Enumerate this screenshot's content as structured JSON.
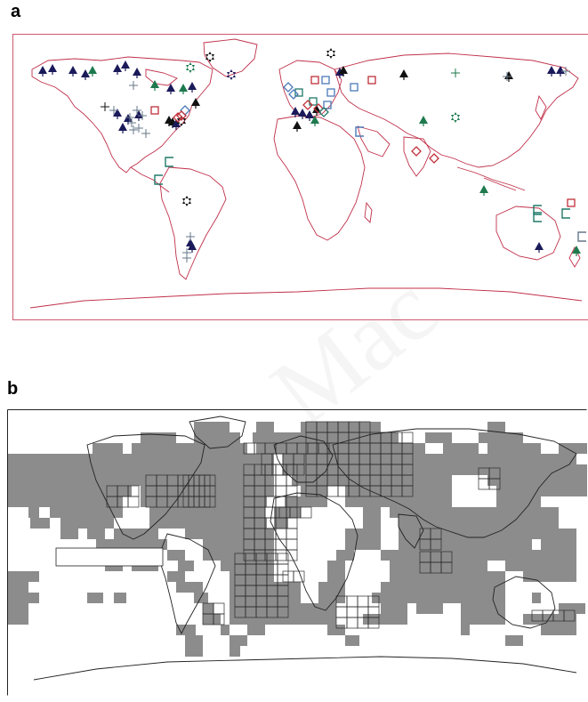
{
  "panels": [
    {
      "id": "a",
      "label": "a"
    },
    {
      "id": "b",
      "label": "b"
    }
  ],
  "watermark_text": "Mac",
  "colors": {
    "coastline_a": "#c0304a",
    "coastline_b": "#222222",
    "frame_b": "#222222",
    "grid_fill": "#8c8c8c",
    "grid_line": "#2a2a2a",
    "navy": "#1a1a5a",
    "green": "#1e7a4e",
    "black": "#111111",
    "red": "#c0303a",
    "blue": "#4a7ab8",
    "teal": "#1e7a6a",
    "gray": "#667788"
  },
  "marker_types": [
    "tree",
    "star",
    "plus",
    "square",
    "diamond",
    "bracket"
  ]
}
